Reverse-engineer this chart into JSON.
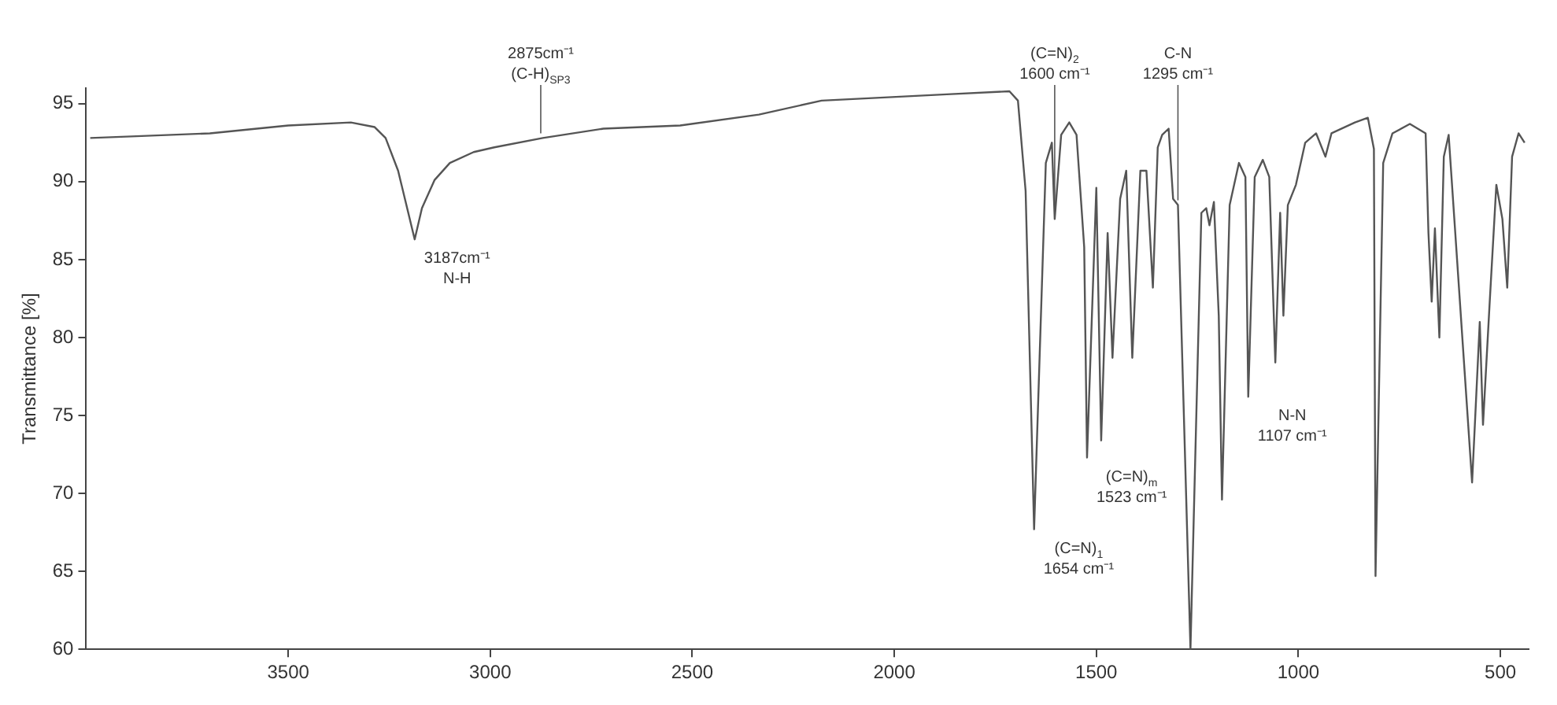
{
  "chart_data": {
    "type": "line",
    "ylabel": "Transmittance [%]",
    "xlim": [
      4000,
      430
    ],
    "xticks": [
      3500,
      3000,
      2500,
      2000,
      1500,
      1000,
      500
    ],
    "ylim": [
      60,
      96
    ],
    "yticks": [
      60,
      65,
      70,
      75,
      80,
      85,
      90,
      95
    ],
    "grid": false,
    "legend": false,
    "series": [
      {
        "color": "#555555",
        "x": [
          3990,
          3888,
          3694,
          3500,
          3345,
          3286,
          3259,
          3228,
          3187,
          3169,
          3138,
          3100,
          3041,
          2990,
          2870,
          2720,
          2530,
          2335,
          2180,
          2025,
          1870,
          1715,
          1694,
          1675,
          1654,
          1625,
          1610,
          1603,
          1587,
          1567,
          1549,
          1530,
          1523,
          1500,
          1488,
          1472,
          1460,
          1441,
          1426,
          1411,
          1391,
          1376,
          1360,
          1348,
          1337,
          1321,
          1310,
          1298,
          1267,
          1240,
          1228,
          1220,
          1209,
          1197,
          1189,
          1170,
          1147,
          1131,
          1124,
          1108,
          1088,
          1072,
          1057,
          1045,
          1037,
          1026,
          1006,
          983,
          956,
          933,
          918,
          860,
          828,
          813,
          809,
          790,
          767,
          724,
          685,
          678,
          670,
          662,
          651,
          640,
          628,
          570,
          551,
          543,
          527,
          510,
          495,
          483,
          471,
          455,
          440
        ],
        "values": [
          92.8,
          92.9,
          93.1,
          93.6,
          93.8,
          93.5,
          92.8,
          90.7,
          86.3,
          88.3,
          90.1,
          91.2,
          91.9,
          92.2,
          92.8,
          93.4,
          93.6,
          94.3,
          95.2,
          95.4,
          95.6,
          95.8,
          95.2,
          89.4,
          67.7,
          91.2,
          92.5,
          87.6,
          93,
          93.8,
          93,
          85.8,
          72.3,
          89.6,
          73.4,
          86.7,
          78.7,
          88.9,
          90.7,
          78.7,
          90.7,
          90.7,
          83.2,
          92.2,
          93,
          93.4,
          88.9,
          88.5,
          60,
          88,
          88.3,
          87.2,
          88.7,
          81.4,
          69.6,
          88.5,
          91.2,
          90.3,
          76.2,
          90.3,
          91.4,
          90.3,
          78.4,
          88,
          81.4,
          88.5,
          89.8,
          92.5,
          93.1,
          91.6,
          93.1,
          93.8,
          94.1,
          92.1,
          64.7,
          91.2,
          93.1,
          93.7,
          93.1,
          86.7,
          82.3,
          87,
          80,
          91.6,
          93,
          70.7,
          81,
          74.4,
          82,
          89.8,
          87.6,
          83.2,
          91.6,
          93.1,
          92.5
        ]
      }
    ],
    "annotations": [
      {
        "text": "3187cm⁻¹\nN-H",
        "x": 3187,
        "y": 86.3
      },
      {
        "text": "2875cm⁻¹\n(C-H)$_{SP3}$",
        "x": 2875,
        "y": 92.8
      },
      {
        "text": "(C=N)$_{1}$\n1654 cm⁻¹",
        "x": 1654,
        "y": 67.7
      },
      {
        "text": "(C=N)$_{m}$\n1523 cm⁻¹",
        "x": 1523,
        "y": 72.3
      },
      {
        "text": "(C=N)$_{2}$\n1600 cm⁻¹",
        "x": 1603,
        "y": 87.6
      },
      {
        "text": "C-N\n1295 cm⁻¹",
        "x": 1298,
        "y": 88.5
      },
      {
        "text": "N-N\n1107 cm⁻¹",
        "x": 1124,
        "y": 76.2
      }
    ]
  }
}
